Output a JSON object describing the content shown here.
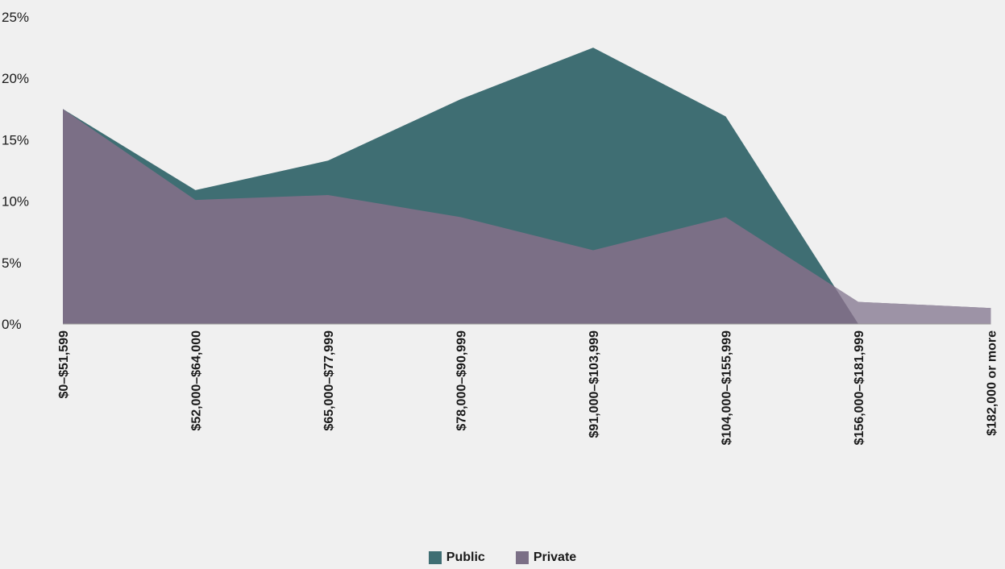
{
  "chart_data": {
    "type": "area",
    "categories": [
      "$0–$51,599",
      "$52,000–$64,000",
      "$65,000–$77,999",
      "$78,000–$90,999",
      "$91,000–$103,999",
      "$104,000–$155,999",
      "$156,000–$181,999",
      "$182,000 or more"
    ],
    "y_tick_labels": [
      "0%",
      "5%",
      "10%",
      "15%",
      "20%",
      "25%"
    ],
    "ylim": [
      0,
      25
    ],
    "grid": false,
    "legend_position": "bottom",
    "series": [
      {
        "name": "Public",
        "color": "#3f6e73",
        "values": [
          17.5,
          10.9,
          13.3,
          18.3,
          22.5,
          16.9,
          0,
          null
        ]
      },
      {
        "name": "Private",
        "color": "#7b6f86",
        "values": [
          17.5,
          10.1,
          10.5,
          8.7,
          6.0,
          8.7,
          1.8,
          1.3
        ]
      }
    ]
  },
  "legend": {
    "public_label": "Public",
    "private_label": "Private"
  }
}
